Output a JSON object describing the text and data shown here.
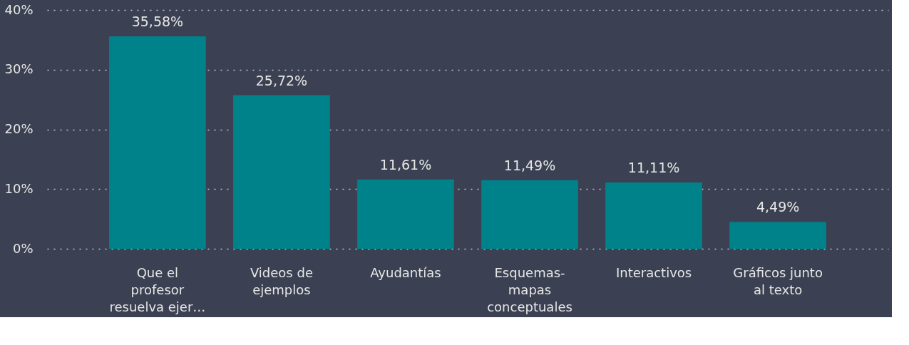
{
  "chart_data": {
    "type": "bar",
    "categories": [
      "Que el profesor resuelva ejer…",
      "Videos de ejemplos",
      "Ayudantías",
      "Esquemas-mapas conceptuales",
      "Interactivos",
      "Gráficos junto al texto"
    ],
    "values": [
      35.58,
      25.72,
      11.61,
      11.49,
      11.11,
      4.49
    ],
    "value_labels": [
      "35,58%",
      "25,72%",
      "11,61%",
      "11,49%",
      "11,11%",
      "4,49%"
    ],
    "color": "#00828a",
    "ylim": [
      0,
      40
    ],
    "yticks": [
      {
        "value": 0,
        "label": "0%"
      },
      {
        "value": 10,
        "label": "10%"
      },
      {
        "value": 20,
        "label": "20%"
      },
      {
        "value": 30,
        "label": "30%"
      },
      {
        "value": 40,
        "label": "40%"
      }
    ],
    "grid": "y"
  }
}
